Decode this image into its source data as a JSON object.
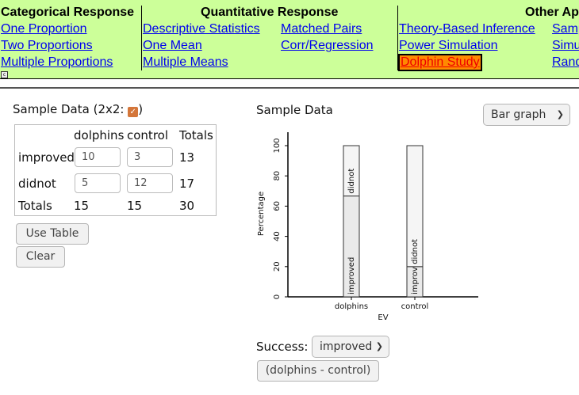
{
  "nav": {
    "headers": {
      "categorical": "Categorical Response",
      "quantitative": "Quantitative Response",
      "other": "Other Ap"
    },
    "links": {
      "one_proportion": "One Proportion",
      "two_proportions": "Two Proportions",
      "multiple_proportions": "Multiple Proportions",
      "descriptive_statistics": "Descriptive Statistics",
      "one_mean": "One Mean",
      "multiple_means": "Multiple Means",
      "matched_pairs": "Matched Pairs",
      "corr_regression": "Corr/Regression",
      "theory_based_inference": "Theory-Based Inference",
      "power_simulation": "Power Simulation",
      "dolphin_study": "Dolphin Study",
      "samp": "Samp",
      "simu": "Simu",
      "rand": "Rand"
    },
    "collapse_glyph": "c"
  },
  "sample": {
    "title": "Sample Data (2x2: ",
    "title_close": ")",
    "check_glyph": "✓",
    "columns": [
      "dolphins",
      "control",
      "Totals"
    ],
    "rows": [
      {
        "label": "improved",
        "dolphins": "10",
        "control": "3",
        "total": "13"
      },
      {
        "label": "didnot",
        "dolphins": "5",
        "control": "12",
        "total": "17"
      }
    ],
    "totals_row": {
      "label": "Totals",
      "dolphins": "15",
      "control": "15",
      "total": "30"
    },
    "use_table_label": "Use Table",
    "clear_label": "Clear"
  },
  "graph": {
    "title": "Sample Data",
    "view_select": "Bar graph",
    "success_label": "Success:",
    "success_value": "improved",
    "difference_label": "(dolphins - control)"
  },
  "chart_data": {
    "type": "bar",
    "stacked": true,
    "categories": [
      "dolphins",
      "control"
    ],
    "series": [
      {
        "name": "improved",
        "values": [
          66.7,
          20.0
        ]
      },
      {
        "name": "didnot",
        "values": [
          33.3,
          80.0
        ]
      }
    ],
    "xlabel": "EV",
    "ylabel": "Percentage",
    "ylim": [
      0,
      100
    ],
    "yticks": [
      0,
      20,
      40,
      60,
      80,
      100
    ],
    "colors": {
      "improved": "#eaeaea",
      "didnot": "#f5f5f5"
    }
  }
}
